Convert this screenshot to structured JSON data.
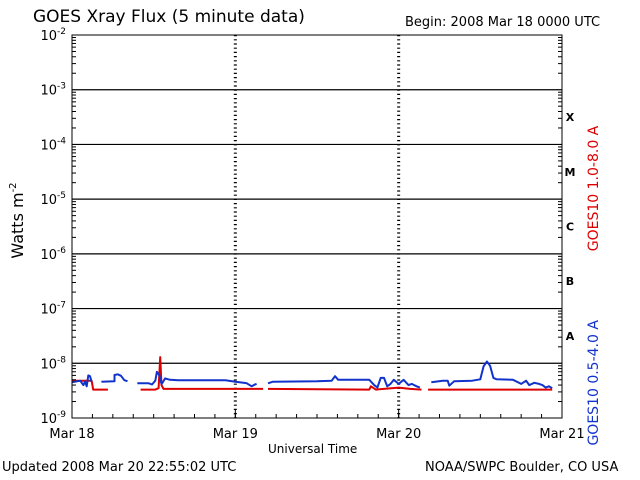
{
  "header": {
    "title": "GOES Xray Flux (5 minute data)",
    "begin": "Begin:  2008 Mar 18 0000 UTC"
  },
  "footer": {
    "updated": "Updated 2008 Mar 20 22:55:02 UTC",
    "credit": "NOAA/SWPC Boulder, CO USA"
  },
  "colors": {
    "long": "#dd0000",
    "short": "#1133cc",
    "grid": "#000000"
  },
  "chart_data": {
    "type": "line",
    "title": "GOES Xray Flux (5 minute data)",
    "xlabel": "Universal Time",
    "ylabel": "Watts m",
    "ylabel_exp": "-2",
    "x_unit": "days since 2008 Mar 18 0000 UTC",
    "xlim": [
      0,
      3
    ],
    "x_ticks": [
      {
        "x": 0,
        "label": "Mar 18"
      },
      {
        "x": 1,
        "label": "Mar 19"
      },
      {
        "x": 2,
        "label": "Mar 20"
      },
      {
        "x": 3,
        "label": "Mar 21"
      }
    ],
    "y_scale": "log",
    "ylim": [
      1e-09,
      0.01
    ],
    "y_ticks": [
      {
        "exp": -9,
        "label": "10",
        "sup": "-9"
      },
      {
        "exp": -8,
        "label": "10",
        "sup": "-8"
      },
      {
        "exp": -7,
        "label": "10",
        "sup": "-7"
      },
      {
        "exp": -6,
        "label": "10",
        "sup": "-6"
      },
      {
        "exp": -5,
        "label": "10",
        "sup": "-5"
      },
      {
        "exp": -4,
        "label": "10",
        "sup": "-4"
      },
      {
        "exp": -3,
        "label": "10",
        "sup": "-3"
      },
      {
        "exp": -2,
        "label": "10",
        "sup": "-2"
      }
    ],
    "flare_classes": [
      {
        "label": "A",
        "exp": -7.5
      },
      {
        "label": "B",
        "exp": -6.5
      },
      {
        "label": "C",
        "exp": -5.5
      },
      {
        "label": "M",
        "exp": -4.5
      },
      {
        "label": "X",
        "exp": -3.5
      }
    ],
    "series": [
      {
        "name": "GOES10 1.0-8.0 A",
        "color": "#dd0000",
        "segments": [
          [
            [
              0.0,
              4.8e-09
            ],
            [
              0.12,
              4.8e-09
            ],
            [
              0.13,
              3.3e-09
            ],
            [
              0.22,
              3.3e-09
            ]
          ],
          [
            [
              0.42,
              3.3e-09
            ],
            [
              0.51,
              3.3e-09
            ],
            [
              0.53,
              3.5e-09
            ],
            [
              0.54,
              1.3e-08
            ],
            [
              0.548,
              4e-09
            ],
            [
              0.56,
              3.4e-09
            ],
            [
              1.17,
              3.4e-09
            ]
          ],
          [
            [
              1.2,
              3.4e-09
            ],
            [
              1.82,
              3.3e-09
            ],
            [
              1.83,
              3.8e-09
            ],
            [
              1.86,
              3.3e-09
            ],
            [
              2.0,
              3.6e-09
            ],
            [
              2.07,
              3.4e-09
            ],
            [
              2.14,
              3.3e-09
            ]
          ],
          [
            [
              2.18,
              3.3e-09
            ],
            [
              2.94,
              3.3e-09
            ]
          ]
        ]
      },
      {
        "name": "GOES10 0.5-4.0 A",
        "color": "#1133cc",
        "segments": [
          [
            [
              0.0,
              4.5e-09
            ],
            [
              0.05,
              4.8e-09
            ],
            [
              0.07,
              4e-09
            ],
            [
              0.08,
              4.6e-09
            ],
            [
              0.09,
              3.8e-09
            ],
            [
              0.1,
              6e-09
            ],
            [
              0.11,
              5.8e-09
            ],
            [
              0.12,
              4.6e-09
            ]
          ],
          [
            [
              0.18,
              4.6e-09
            ],
            [
              0.26,
              4.7e-09
            ],
            [
              0.26,
              6.1e-09
            ],
            [
              0.28,
              6.3e-09
            ],
            [
              0.3,
              5.9e-09
            ],
            [
              0.32,
              4.9e-09
            ],
            [
              0.34,
              4.7e-09
            ]
          ],
          [
            [
              0.4,
              4.3e-09
            ],
            [
              0.47,
              4.3e-09
            ],
            [
              0.49,
              4.1e-09
            ],
            [
              0.51,
              4.8e-09
            ],
            [
              0.52,
              7e-09
            ],
            [
              0.535,
              6e-09
            ],
            [
              0.545,
              4.5e-09
            ],
            [
              0.55,
              4.2e-09
            ],
            [
              0.57,
              5.3e-09
            ],
            [
              0.6,
              5e-09
            ],
            [
              0.65,
              4.9e-09
            ],
            [
              0.94,
              4.9e-09
            ],
            [
              1.0,
              4.6e-09
            ],
            [
              1.05,
              4.4e-09
            ],
            [
              1.07,
              4.3e-09
            ],
            [
              1.1,
              3.8e-09
            ],
            [
              1.12,
              4.1e-09
            ],
            [
              1.13,
              4.2e-09
            ]
          ],
          [
            [
              1.2,
              4.3e-09
            ],
            [
              1.23,
              4.6e-09
            ],
            [
              1.5,
              4.7e-09
            ],
            [
              1.59,
              4.8e-09
            ],
            [
              1.61,
              5.8e-09
            ],
            [
              1.63,
              5e-09
            ],
            [
              1.82,
              5e-09
            ],
            [
              1.85,
              4e-09
            ],
            [
              1.87,
              3.6e-09
            ],
            [
              1.89,
              5.4e-09
            ],
            [
              1.91,
              5.4e-09
            ],
            [
              1.93,
              3.8e-09
            ],
            [
              1.95,
              4.2e-09
            ],
            [
              1.97,
              5e-09
            ],
            [
              2.0,
              4.2e-09
            ],
            [
              2.03,
              5e-09
            ],
            [
              2.06,
              4e-09
            ],
            [
              2.08,
              4.2e-09
            ],
            [
              2.11,
              3.8e-09
            ],
            [
              2.13,
              3.6e-09
            ]
          ],
          [
            [
              2.2,
              4.5e-09
            ],
            [
              2.27,
              4.8e-09
            ],
            [
              2.3,
              4.8e-09
            ],
            [
              2.31,
              3.9e-09
            ],
            [
              2.34,
              4.7e-09
            ],
            [
              2.45,
              4.8e-09
            ],
            [
              2.5,
              5.1e-09
            ],
            [
              2.52,
              8.8e-09
            ],
            [
              2.54,
              1.08e-08
            ],
            [
              2.56,
              9e-09
            ],
            [
              2.58,
              5.4e-09
            ],
            [
              2.6,
              5.1e-09
            ],
            [
              2.7,
              5e-09
            ],
            [
              2.75,
              4.2e-09
            ],
            [
              2.78,
              4.8e-09
            ],
            [
              2.8,
              4e-09
            ],
            [
              2.83,
              4.4e-09
            ],
            [
              2.86,
              4.2e-09
            ],
            [
              2.88,
              4e-09
            ],
            [
              2.9,
              3.6e-09
            ],
            [
              2.92,
              3.8e-09
            ],
            [
              2.94,
              3.5e-09
            ]
          ]
        ]
      }
    ]
  }
}
